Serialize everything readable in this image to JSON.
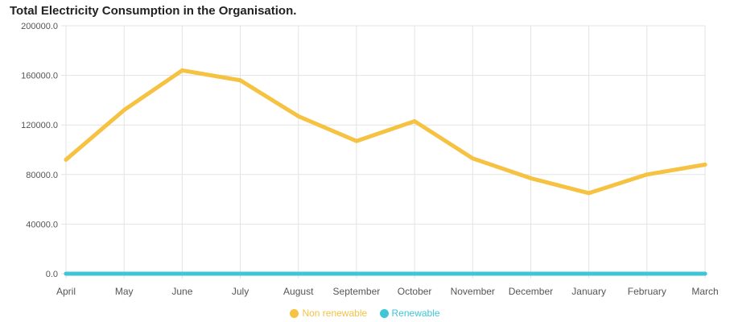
{
  "chart_data": {
    "type": "line",
    "title": "Total Electricity Consumption in the Organisation.",
    "xlabel": "",
    "ylabel": "",
    "categories": [
      "April",
      "May",
      "June",
      "July",
      "August",
      "September",
      "October",
      "November",
      "December",
      "January",
      "February",
      "March"
    ],
    "y_ticks": [
      "200000.0",
      "160000.0",
      "120000.0",
      "80000.0",
      "40000.0",
      "0.0"
    ],
    "y_tick_values": [
      200000,
      160000,
      120000,
      80000,
      40000,
      0
    ],
    "ylim": [
      0,
      200000
    ],
    "grid": true,
    "legend_position": "bottom",
    "series": [
      {
        "name": "Non renewable",
        "color": "#f5c242",
        "values": [
          92000,
          132000,
          164000,
          156000,
          127000,
          107000,
          123000,
          93000,
          77000,
          65000,
          80000,
          88000
        ]
      },
      {
        "name": "Renewable",
        "color": "#3fc6d6",
        "values": [
          0,
          0,
          0,
          0,
          0,
          0,
          0,
          0,
          0,
          0,
          0,
          0
        ]
      }
    ]
  }
}
